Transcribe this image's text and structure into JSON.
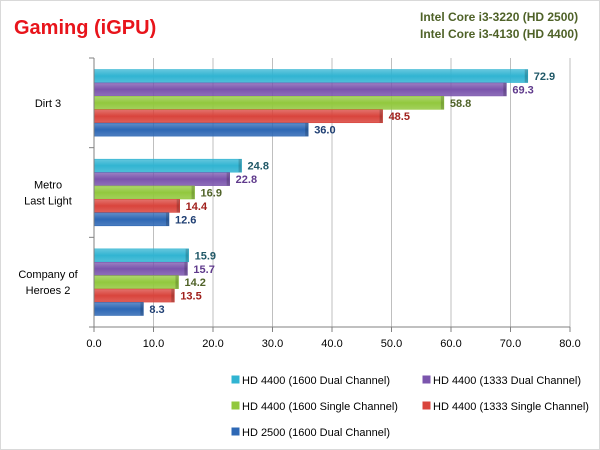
{
  "title": "Gaming  (iGPU)",
  "subtitle_lines": [
    "Intel Core i3-3220 (HD 2500)",
    "Intel Core i3-4130 (HD 4400)"
  ],
  "colors": {
    "title": "#e8141b",
    "subtitle": "#4f6228",
    "gridline": "#bfbfbf",
    "axis": "#808080"
  },
  "chart_data": {
    "type": "bar",
    "orientation": "horizontal",
    "title": "Gaming  (iGPU)",
    "categories": [
      [
        "Dirt 3"
      ],
      [
        "Metro",
        "Last Light"
      ],
      [
        "Company of",
        "Heroes 2"
      ]
    ],
    "xlim": [
      0,
      80
    ],
    "xticks": [
      "0.0",
      "10.0",
      "20.0",
      "30.0",
      "40.0",
      "50.0",
      "60.0",
      "70.0",
      "80.0"
    ],
    "grid": true,
    "legend_position": "bottom",
    "series": [
      {
        "name": "HD 4400 (1600 Dual Channel)",
        "color": "#31b4d2",
        "label_color": "#215968",
        "values": [
          72.9,
          24.8,
          15.9
        ]
      },
      {
        "name": "HD 4400 (1333 Dual Channel)",
        "color": "#7b55ad",
        "label_color": "#5f3a8c",
        "values": [
          69.3,
          22.8,
          15.7
        ]
      },
      {
        "name": "HD 4400 (1600 Single Channel)",
        "color": "#92c83e",
        "label_color": "#4f6228",
        "values": [
          58.8,
          16.9,
          14.2
        ]
      },
      {
        "name": "HD 4400 (1333 Single Channel)",
        "color": "#d9443c",
        "label_color": "#a0201c",
        "values": [
          48.5,
          14.4,
          13.5
        ]
      },
      {
        "name": "HD 2500 (1600 Dual Channel)",
        "color": "#2e68b5",
        "label_color": "#1f3f73",
        "values": [
          36.0,
          12.6,
          8.3
        ]
      }
    ]
  }
}
